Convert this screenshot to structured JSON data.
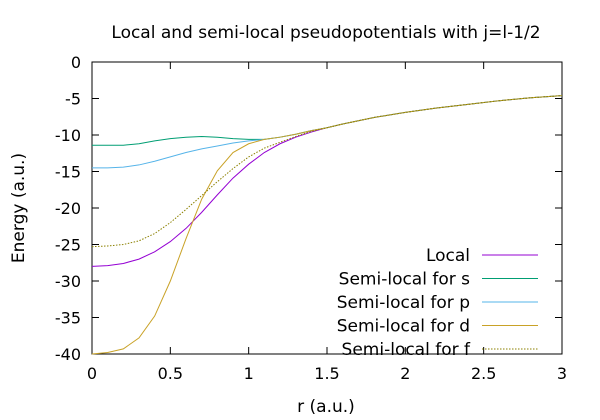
{
  "chart_data": {
    "type": "line",
    "title": "Local and semi-local pseudopotentials with j=l-1/2",
    "xlabel": "r (a.u.)",
    "ylabel": "Energy (a.u.)",
    "xlim": [
      0,
      3
    ],
    "ylim": [
      -40,
      0
    ],
    "x_ticks": [
      0,
      0.5,
      1,
      1.5,
      2,
      2.5,
      3
    ],
    "x_tick_labels": [
      "0",
      "0.5",
      "1",
      "1.5",
      "2",
      "2.5",
      "3"
    ],
    "y_ticks": [
      0,
      -5,
      -10,
      -15,
      -20,
      -25,
      -30,
      -35,
      -40
    ],
    "y_tick_labels": [
      "0",
      "-5",
      "-10",
      "-15",
      "-20",
      "-25",
      "-30",
      "-35",
      "-40"
    ],
    "grid": false,
    "legend_position": "bottom-right",
    "series": [
      {
        "name": "Local",
        "color": "#9400d3",
        "dash": "",
        "x": [
          0,
          0.1,
          0.2,
          0.3,
          0.4,
          0.5,
          0.6,
          0.7,
          0.8,
          0.9,
          1.0,
          1.1,
          1.2,
          1.3,
          1.4,
          1.5,
          1.6,
          1.8,
          2.0,
          2.2,
          2.4,
          2.6,
          2.8,
          3.0
        ],
        "y": [
          -28.0,
          -27.9,
          -27.6,
          -27.0,
          -26.0,
          -24.6,
          -22.8,
          -20.6,
          -18.2,
          -15.9,
          -14.0,
          -12.4,
          -11.2,
          -10.3,
          -9.6,
          -9.0,
          -8.5,
          -7.6,
          -6.9,
          -6.3,
          -5.8,
          -5.3,
          -4.9,
          -4.6
        ]
      },
      {
        "name": "Semi-local for s",
        "color": "#009e73",
        "dash": "",
        "x": [
          0,
          0.1,
          0.2,
          0.3,
          0.4,
          0.5,
          0.6,
          0.7,
          0.8,
          0.9,
          1.0,
          1.1,
          1.2,
          1.3,
          1.4,
          1.5,
          1.6,
          1.8,
          2.0,
          2.2,
          2.4,
          2.6,
          2.8,
          3.0
        ],
        "y": [
          -11.4,
          -11.4,
          -11.4,
          -11.2,
          -10.8,
          -10.5,
          -10.3,
          -10.2,
          -10.3,
          -10.5,
          -10.6,
          -10.6,
          -10.3,
          -9.9,
          -9.4,
          -9.0,
          -8.5,
          -7.6,
          -6.9,
          -6.3,
          -5.8,
          -5.3,
          -4.9,
          -4.6
        ]
      },
      {
        "name": "Semi-local for p",
        "color": "#56b4e9",
        "dash": "",
        "x": [
          0,
          0.1,
          0.2,
          0.3,
          0.4,
          0.5,
          0.6,
          0.7,
          0.8,
          0.9,
          1.0,
          1.1,
          1.2,
          1.3,
          1.4,
          1.5,
          1.6,
          1.8,
          2.0,
          2.2,
          2.4,
          2.6,
          2.8,
          3.0
        ],
        "y": [
          -14.5,
          -14.5,
          -14.4,
          -14.1,
          -13.6,
          -13.0,
          -12.4,
          -11.9,
          -11.5,
          -11.1,
          -10.8,
          -10.6,
          -10.3,
          -9.9,
          -9.4,
          -9.0,
          -8.5,
          -7.6,
          -6.9,
          -6.3,
          -5.8,
          -5.3,
          -4.9,
          -4.6
        ]
      },
      {
        "name": "Semi-local for d",
        "color": "#c9a227",
        "dash": "",
        "x": [
          0,
          0.1,
          0.2,
          0.3,
          0.4,
          0.5,
          0.6,
          0.7,
          0.8,
          0.9,
          1.0,
          1.1,
          1.2,
          1.3,
          1.4,
          1.5,
          1.6,
          1.8,
          2.0,
          2.2,
          2.4,
          2.6,
          2.8,
          3.0
        ],
        "y": [
          -40.0,
          -39.8,
          -39.3,
          -37.8,
          -34.8,
          -30.0,
          -24.2,
          -18.8,
          -14.9,
          -12.4,
          -11.2,
          -10.6,
          -10.3,
          -9.9,
          -9.4,
          -9.0,
          -8.5,
          -7.6,
          -6.9,
          -6.3,
          -5.8,
          -5.3,
          -4.9,
          -4.6
        ]
      },
      {
        "name": "Semi-local for f",
        "color": "#8b8000",
        "dash": "1.5,1.5",
        "x": [
          0,
          0.1,
          0.2,
          0.3,
          0.4,
          0.5,
          0.6,
          0.7,
          0.8,
          0.9,
          1.0,
          1.1,
          1.2,
          1.3,
          1.4,
          1.5,
          1.6,
          1.8,
          2.0,
          2.2,
          2.4,
          2.6,
          2.8,
          3.0
        ],
        "y": [
          -25.3,
          -25.2,
          -25.0,
          -24.5,
          -23.5,
          -22.0,
          -20.2,
          -18.3,
          -16.4,
          -14.6,
          -13.0,
          -11.8,
          -11.0,
          -10.2,
          -9.5,
          -9.0,
          -8.5,
          -7.6,
          -6.9,
          -6.3,
          -5.8,
          -5.3,
          -4.9,
          -4.6
        ]
      }
    ]
  }
}
